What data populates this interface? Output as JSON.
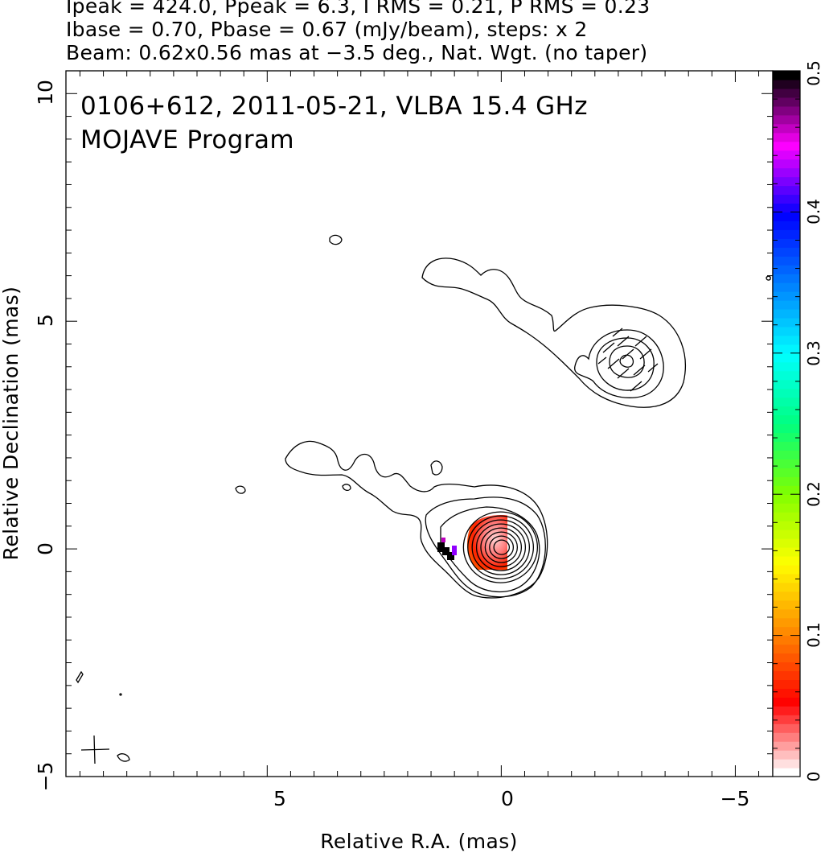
{
  "header": {
    "line1": "Ipeak = 424.0, Ppeak = 6.3, I RMS = 0.21, P RMS = 0.23",
    "line2": "Ibase = 0.70, Pbase = 0.67 (mJy/beam), steps: x 2",
    "line3": "Beam: 0.62x0.56 mas at −3.5 deg., Nat. Wgt. (no taper)"
  },
  "chart_data": {
    "type": "contour",
    "title": "0106+612, 2011-05-21, VLBA 15.4 GHz",
    "subtitle": "MOJAVE Program",
    "xlabel": "Relative R.A. (mas)",
    "ylabel": "Relative Declination (mas)",
    "xlim": [
      9.3,
      -5.8
    ],
    "ylim": [
      -5,
      10.5
    ],
    "x_reversed": true,
    "x_ticks": [
      5,
      0,
      -5
    ],
    "x_tick_labels": [
      "5",
      "0",
      "−5"
    ],
    "y_ticks": [
      -5,
      0,
      5,
      10
    ],
    "y_tick_labels": [
      "−5",
      "0",
      "5",
      "10"
    ],
    "colorbar": {
      "ticks": [
        0,
        0.1,
        0.2,
        0.3,
        0.4,
        0.5
      ],
      "tick_labels": [
        "0",
        "0.1",
        "0.2",
        "0.3",
        "0.4",
        "0.5"
      ],
      "range": [
        0,
        0.5
      ]
    },
    "colorscale": [
      "#ffffff",
      "#ff0000",
      "#ff8800",
      "#ffff00",
      "#80ff00",
      "#00ff80",
      "#00ffff",
      "#0080ff",
      "#0000ff",
      "#ff00ff",
      "#000000"
    ],
    "core": {
      "x": 0,
      "y": 0,
      "n_contours": 8
    },
    "upper_component": {
      "x": -2.6,
      "y": 4.1,
      "n_contours": 4
    },
    "beam": {
      "major_mas": 0.62,
      "minor_mas": 0.56,
      "pa_deg": -3.5,
      "x": 8.9,
      "y": -4.4
    }
  }
}
